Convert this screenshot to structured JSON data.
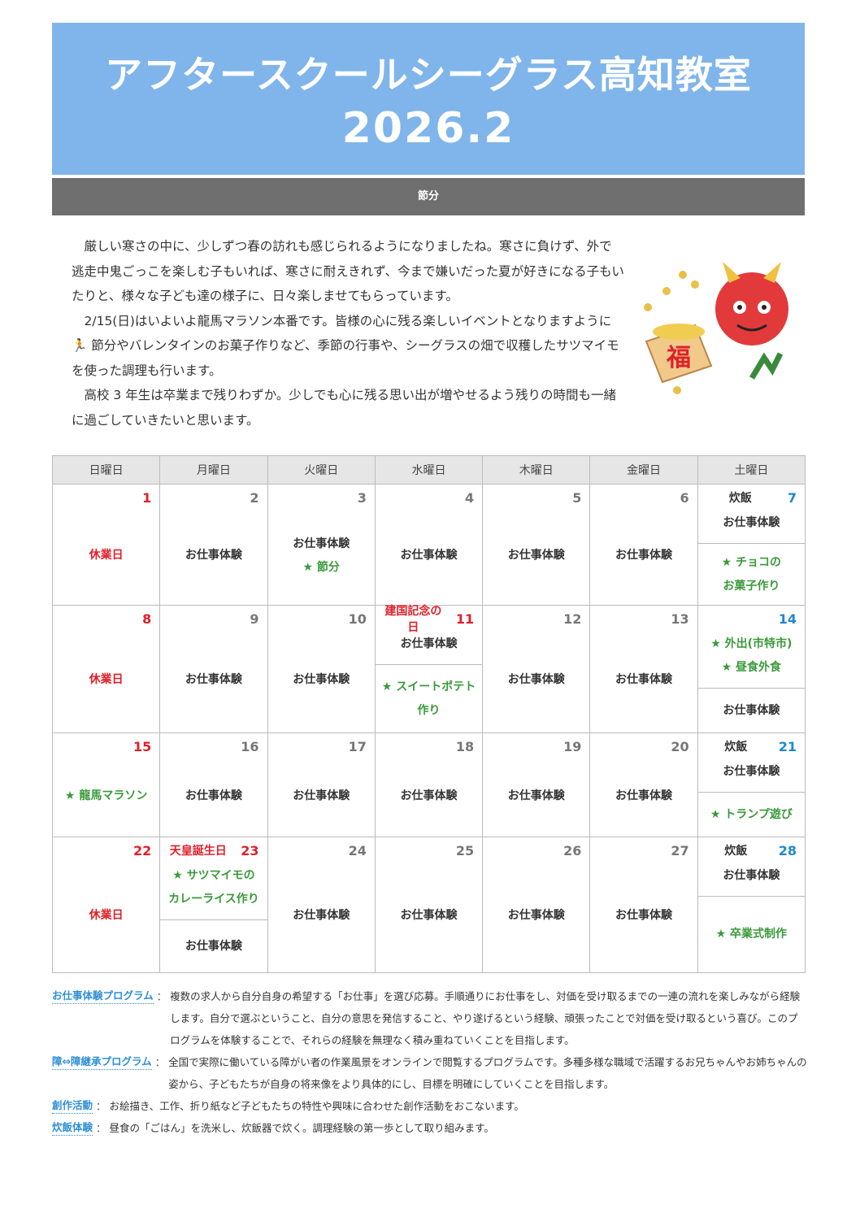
{
  "header": {
    "title": "アフタースクールシーグラス高知教室",
    "month": "2026.2",
    "theme": "節分",
    "banner_color": "#7fb5ea"
  },
  "intro": [
    "厳しい寒さの中に、少しずつ春の訪れも感じられるようになりましたね。寒さに負けず、外で逃走中鬼ごっこを楽しむ子もいれば、寒さに耐えきれず、今まで嫌いだった夏が好きになる子もいたりと、様々な子ども達の様子に、日々楽しませてもらっています。",
    "2/15(日)はいよいよ龍馬マラソン本番です。皆様の心に残る楽しいイベントとなりますように🏃 節分やバレンタインのお菓子作りなど、季節の行事や、シーグラスの畑で収穫したサツマイモを使った調理も行います。",
    "高校 3 年生は卒業まで残りわずか。少しでも心に残る思い出が増やせるよう残りの時間も一緒に過ごしていきたいと思います。"
  ],
  "illustration": {
    "icon": "oni-and-fukumasu-icon",
    "masu_text": "福"
  },
  "calendar": {
    "weekdays": [
      "日曜日",
      "月曜日",
      "火曜日",
      "水曜日",
      "木曜日",
      "金曜日",
      "土曜日"
    ],
    "colors": {
      "holiday": "#e0202a",
      "event": "#3a9a3a",
      "saturday": "#1e88d0"
    },
    "weeks": [
      [
        {
          "date": "1",
          "dc": "red",
          "sections": [
            [
              {
                "t": "休業日",
                "s": "red"
              }
            ]
          ]
        },
        {
          "date": "2",
          "sections": [
            [
              {
                "t": "お仕事体験"
              }
            ]
          ]
        },
        {
          "date": "3",
          "sections": [
            [
              {
                "t": "お仕事体験"
              },
              {
                "t": "★ 節分",
                "s": "green"
              }
            ]
          ]
        },
        {
          "date": "4",
          "sections": [
            [
              {
                "t": "お仕事体験"
              }
            ]
          ]
        },
        {
          "date": "5",
          "sections": [
            [
              {
                "t": "お仕事体験"
              }
            ]
          ]
        },
        {
          "date": "6",
          "sections": [
            [
              {
                "t": "お仕事体験"
              }
            ]
          ]
        },
        {
          "date": "7",
          "dc": "blue",
          "label": "炊飯",
          "sections": [
            [
              {
                "t": "お仕事体験"
              }
            ],
            [
              {
                "t": "★ チョコの",
                "s": "green"
              },
              {
                "t": "お菓子作り",
                "s": "green"
              }
            ]
          ]
        }
      ],
      [
        {
          "date": "8",
          "dc": "red",
          "sections": [
            [
              {
                "t": "休業日",
                "s": "red"
              }
            ]
          ]
        },
        {
          "date": "9",
          "sections": [
            [
              {
                "t": "お仕事体験"
              }
            ]
          ]
        },
        {
          "date": "10",
          "sections": [
            [
              {
                "t": "お仕事体験"
              }
            ]
          ]
        },
        {
          "date": "11",
          "dc": "red",
          "label": "建国記念の日",
          "lc": "red",
          "sections": [
            [
              {
                "t": "お仕事体験"
              }
            ],
            [
              {
                "t": "★ スイートポテト",
                "s": "green"
              },
              {
                "t": "作り",
                "s": "green"
              }
            ]
          ]
        },
        {
          "date": "12",
          "sections": [
            [
              {
                "t": "お仕事体験"
              }
            ]
          ]
        },
        {
          "date": "13",
          "sections": [
            [
              {
                "t": "お仕事体験"
              }
            ]
          ]
        },
        {
          "date": "14",
          "dc": "blue",
          "sections": [
            [
              {
                "t": "★ 外出(市特市)",
                "s": "green"
              },
              {
                "t": "★ 昼食外食",
                "s": "green"
              }
            ],
            [
              {
                "t": "お仕事体験"
              }
            ]
          ]
        }
      ],
      [
        {
          "date": "15",
          "dc": "red",
          "sections": [
            [
              {
                "t": "★ 龍馬マラソン",
                "s": "green"
              }
            ]
          ]
        },
        {
          "date": "16",
          "sections": [
            [
              {
                "t": "お仕事体験"
              }
            ]
          ]
        },
        {
          "date": "17",
          "sections": [
            [
              {
                "t": "お仕事体験"
              }
            ]
          ]
        },
        {
          "date": "18",
          "sections": [
            [
              {
                "t": "お仕事体験"
              }
            ]
          ]
        },
        {
          "date": "19",
          "sections": [
            [
              {
                "t": "お仕事体験"
              }
            ]
          ]
        },
        {
          "date": "20",
          "sections": [
            [
              {
                "t": "お仕事体験"
              }
            ]
          ]
        },
        {
          "date": "21",
          "dc": "blue",
          "label": "炊飯",
          "sections": [
            [
              {
                "t": "お仕事体験"
              }
            ],
            [
              {
                "t": "★ トランプ遊び",
                "s": "green"
              }
            ]
          ]
        }
      ],
      [
        {
          "date": "22",
          "dc": "red",
          "sections": [
            [
              {
                "t": "休業日",
                "s": "red"
              }
            ]
          ]
        },
        {
          "date": "23",
          "dc": "red",
          "label": "天皇誕生日",
          "lc": "red",
          "sections": [
            [
              {
                "t": "★ サツマイモの",
                "s": "green"
              },
              {
                "t": "カレーライス作り",
                "s": "green"
              }
            ],
            [
              {
                "t": "お仕事体験"
              }
            ]
          ]
        },
        {
          "date": "24",
          "sections": [
            [
              {
                "t": "お仕事体験"
              }
            ]
          ]
        },
        {
          "date": "25",
          "sections": [
            [
              {
                "t": "お仕事体験"
              }
            ]
          ]
        },
        {
          "date": "26",
          "sections": [
            [
              {
                "t": "お仕事体験"
              }
            ]
          ]
        },
        {
          "date": "27",
          "sections": [
            [
              {
                "t": "お仕事体験"
              }
            ]
          ]
        },
        {
          "date": "28",
          "dc": "blue",
          "label": "炊飯",
          "sections": [
            [
              {
                "t": "お仕事体験"
              }
            ],
            [
              {
                "t": "★ 卒業式制作",
                "s": "green"
              }
            ]
          ]
        }
      ]
    ]
  },
  "notes": [
    {
      "key": "お仕事体験プログラム",
      "text": "複数の求人から自分自身の希望する「お仕事」を選び応募。手順通りにお仕事をし、対価を受け取るまでの一連の流れを楽しみながら経験します。自分で選ぶということ、自分の意思を発信すること、やり遂げるという経験、頑張ったことで対価を受け取るという喜び。このプログラムを体験することで、それらの経験を無理なく積み重ねていくことを目指します。"
    },
    {
      "key": "障⇔障継承プログラム",
      "text": "全国で実際に働いている障がい者の作業風景をオンラインで閲覧するプログラムです。多種多様な職域で活躍するお兄ちゃんやお姉ちゃんの姿から、子どもたちが自身の将来像をより具体的にし、目標を明確にしていくことを目指します。"
    },
    {
      "key": "創作活動",
      "text": "お絵描き、工作、折り紙など子どもたちの特性や興味に合わせた創作活動をおこないます。"
    },
    {
      "key": "炊飯体験",
      "text": "昼食の「ごはん」を洗米し、炊飯器で炊く。調理経験の第一歩として取り組みます。"
    }
  ]
}
